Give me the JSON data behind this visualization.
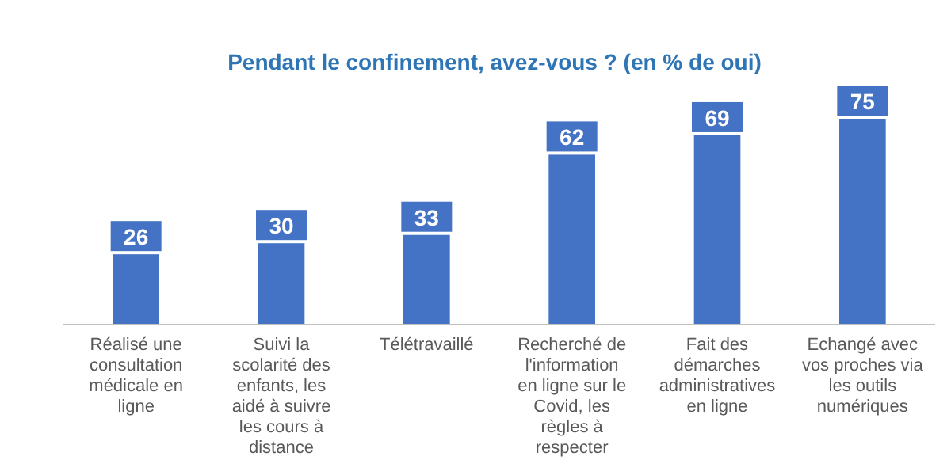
{
  "chart_data": {
    "type": "bar",
    "title": "Pendant le confinement, avez-vous ? (en % de oui)",
    "categories": [
      "Réalisé une consultation médicale en ligne",
      "Suivi la scolarité des enfants, les aidé à suivre les cours à distance",
      "Télétravaillé",
      "Recherché de l'information en ligne sur le Covid, les règles à respecter",
      "Fait des démarches administratives en ligne",
      "Echangé avec vos proches via les outils numériques"
    ],
    "values": [
      26,
      30,
      33,
      62,
      69,
      75
    ],
    "color": "#4472c4",
    "data_labels": true,
    "ylim": [
      0,
      75
    ]
  }
}
